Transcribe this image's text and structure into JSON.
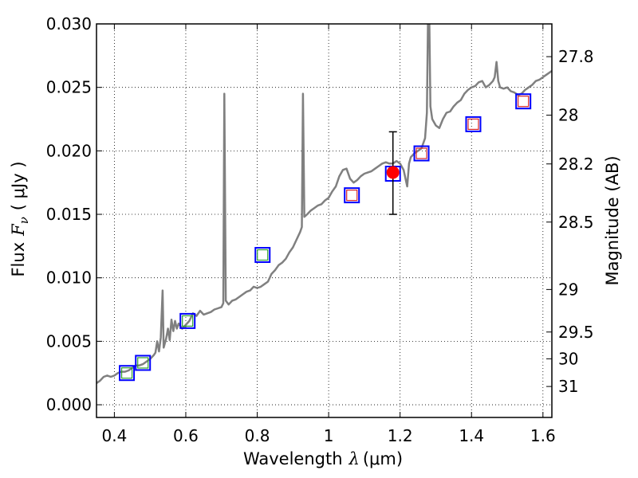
{
  "chart_data": {
    "type": "line",
    "title": "",
    "xlabel": {
      "prefix": "Wavelength",
      "symbol": "λ",
      "unit": "(μm)"
    },
    "ylabel": {
      "prefix": "Flux",
      "symbol": "F",
      "subscript": "ν",
      "unit": "( μJy )"
    },
    "y2label": "Magnitude (AB)",
    "xlim": [
      0.35,
      1.625
    ],
    "ylim": [
      -0.001,
      0.03
    ],
    "grid": true,
    "x_ticks": [
      0.4,
      0.6,
      0.8,
      1.0,
      1.2,
      1.4,
      1.6
    ],
    "x_tick_labels": [
      "0.4",
      "0.6",
      "0.8",
      "1",
      "1.2",
      "1.4",
      "1.6"
    ],
    "y_ticks": [
      0.0,
      0.005,
      0.01,
      0.015,
      0.02,
      0.025,
      0.03
    ],
    "y_tick_labels": [
      "0.000",
      "0.005",
      "0.010",
      "0.015",
      "0.020",
      "0.025",
      "0.030"
    ],
    "mag_ticks": [
      {
        "label": "27.8",
        "flux": 0.02742
      },
      {
        "label": "28",
        "flux": 0.02281
      },
      {
        "label": "28.2",
        "flux": 0.01897
      },
      {
        "label": "28.5",
        "flux": 0.01439
      },
      {
        "label": "29",
        "flux": 0.00908
      },
      {
        "label": "29.5",
        "flux": 0.00573
      },
      {
        "label": "30",
        "flux": 0.00362
      },
      {
        "label": "31",
        "flux": 0.00144
      }
    ],
    "series": [
      {
        "name": "template SED",
        "type": "line",
        "color": "#808080",
        "points": [
          [
            0.35,
            0.0017
          ],
          [
            0.36,
            0.0019
          ],
          [
            0.37,
            0.0022
          ],
          [
            0.38,
            0.0023
          ],
          [
            0.39,
            0.0022
          ],
          [
            0.4,
            0.0023
          ],
          [
            0.41,
            0.0025
          ],
          [
            0.42,
            0.0026
          ],
          [
            0.43,
            0.0026
          ],
          [
            0.44,
            0.0027
          ],
          [
            0.45,
            0.0029
          ],
          [
            0.46,
            0.0031
          ],
          [
            0.47,
            0.0031
          ],
          [
            0.48,
            0.0032
          ],
          [
            0.49,
            0.0034
          ],
          [
            0.5,
            0.0036
          ],
          [
            0.51,
            0.0039
          ],
          [
            0.515,
            0.0041
          ],
          [
            0.52,
            0.005
          ],
          [
            0.525,
            0.0042
          ],
          [
            0.53,
            0.0053
          ],
          [
            0.535,
            0.009
          ],
          [
            0.538,
            0.0045
          ],
          [
            0.545,
            0.0052
          ],
          [
            0.55,
            0.006
          ],
          [
            0.555,
            0.0051
          ],
          [
            0.56,
            0.0067
          ],
          [
            0.565,
            0.0058
          ],
          [
            0.57,
            0.0066
          ],
          [
            0.575,
            0.006
          ],
          [
            0.58,
            0.0064
          ],
          [
            0.585,
            0.0062
          ],
          [
            0.59,
            0.006
          ],
          [
            0.6,
            0.0063
          ],
          [
            0.61,
            0.0066
          ],
          [
            0.62,
            0.0072
          ],
          [
            0.63,
            0.007
          ],
          [
            0.64,
            0.0074
          ],
          [
            0.65,
            0.0071
          ],
          [
            0.66,
            0.0072
          ],
          [
            0.67,
            0.0073
          ],
          [
            0.68,
            0.0075
          ],
          [
            0.69,
            0.0076
          ],
          [
            0.7,
            0.0077
          ],
          [
            0.705,
            0.008
          ],
          [
            0.708,
            0.0245
          ],
          [
            0.712,
            0.0082
          ],
          [
            0.72,
            0.0079
          ],
          [
            0.73,
            0.0082
          ],
          [
            0.74,
            0.0083
          ],
          [
            0.75,
            0.0085
          ],
          [
            0.76,
            0.0087
          ],
          [
            0.77,
            0.0089
          ],
          [
            0.78,
            0.009
          ],
          [
            0.79,
            0.0093
          ],
          [
            0.8,
            0.0092
          ],
          [
            0.81,
            0.0093
          ],
          [
            0.82,
            0.0095
          ],
          [
            0.83,
            0.0097
          ],
          [
            0.84,
            0.0103
          ],
          [
            0.85,
            0.0106
          ],
          [
            0.86,
            0.011
          ],
          [
            0.87,
            0.0112
          ],
          [
            0.88,
            0.0115
          ],
          [
            0.89,
            0.012
          ],
          [
            0.9,
            0.0124
          ],
          [
            0.91,
            0.013
          ],
          [
            0.92,
            0.0136
          ],
          [
            0.925,
            0.014
          ],
          [
            0.928,
            0.0245
          ],
          [
            0.932,
            0.0148
          ],
          [
            0.94,
            0.015
          ],
          [
            0.95,
            0.0153
          ],
          [
            0.96,
            0.0155
          ],
          [
            0.97,
            0.0157
          ],
          [
            0.98,
            0.0158
          ],
          [
            0.99,
            0.0161
          ],
          [
            1.0,
            0.0163
          ],
          [
            1.01,
            0.0168
          ],
          [
            1.02,
            0.0172
          ],
          [
            1.03,
            0.018
          ],
          [
            1.04,
            0.0185
          ],
          [
            1.05,
            0.0186
          ],
          [
            1.06,
            0.0178
          ],
          [
            1.07,
            0.0175
          ],
          [
            1.08,
            0.0177
          ],
          [
            1.09,
            0.018
          ],
          [
            1.1,
            0.0182
          ],
          [
            1.11,
            0.0183
          ],
          [
            1.12,
            0.0184
          ],
          [
            1.13,
            0.0186
          ],
          [
            1.14,
            0.0188
          ],
          [
            1.15,
            0.019
          ],
          [
            1.16,
            0.0191
          ],
          [
            1.17,
            0.019
          ],
          [
            1.18,
            0.019
          ],
          [
            1.19,
            0.0192
          ],
          [
            1.2,
            0.019
          ],
          [
            1.21,
            0.0185
          ],
          [
            1.22,
            0.0172
          ],
          [
            1.225,
            0.019
          ],
          [
            1.23,
            0.0195
          ],
          [
            1.24,
            0.0198
          ],
          [
            1.25,
            0.02
          ],
          [
            1.26,
            0.0202
          ],
          [
            1.27,
            0.021
          ],
          [
            1.275,
            0.023
          ],
          [
            1.278,
            0.03
          ],
          [
            1.282,
            0.03
          ],
          [
            1.285,
            0.0235
          ],
          [
            1.29,
            0.0225
          ],
          [
            1.3,
            0.022
          ],
          [
            1.31,
            0.0218
          ],
          [
            1.32,
            0.0225
          ],
          [
            1.33,
            0.023
          ],
          [
            1.34,
            0.0231
          ],
          [
            1.35,
            0.0235
          ],
          [
            1.36,
            0.0238
          ],
          [
            1.37,
            0.024
          ],
          [
            1.38,
            0.0245
          ],
          [
            1.39,
            0.0248
          ],
          [
            1.4,
            0.025
          ],
          [
            1.41,
            0.0251
          ],
          [
            1.42,
            0.0254
          ],
          [
            1.43,
            0.0255
          ],
          [
            1.44,
            0.025
          ],
          [
            1.45,
            0.0252
          ],
          [
            1.46,
            0.0255
          ],
          [
            1.465,
            0.0258
          ],
          [
            1.47,
            0.027
          ],
          [
            1.475,
            0.0255
          ],
          [
            1.48,
            0.025
          ],
          [
            1.49,
            0.0249
          ],
          [
            1.5,
            0.025
          ],
          [
            1.51,
            0.0247
          ],
          [
            1.52,
            0.0246
          ],
          [
            1.53,
            0.0244
          ],
          [
            1.54,
            0.0245
          ],
          [
            1.55,
            0.0248
          ],
          [
            1.56,
            0.025
          ],
          [
            1.57,
            0.0252
          ],
          [
            1.58,
            0.0255
          ],
          [
            1.59,
            0.0256
          ],
          [
            1.6,
            0.0258
          ],
          [
            1.61,
            0.026
          ],
          [
            1.625,
            0.0263
          ]
        ]
      },
      {
        "name": "photometry (blue squares)",
        "type": "scatter",
        "marker": "square",
        "color": "#0000ff",
        "points": [
          [
            0.435,
            0.0025
          ],
          [
            0.48,
            0.0033
          ],
          [
            0.605,
            0.0066
          ],
          [
            0.815,
            0.0118
          ],
          [
            1.065,
            0.0165
          ],
          [
            1.18,
            0.0182
          ],
          [
            1.26,
            0.0198
          ],
          [
            1.405,
            0.0221
          ],
          [
            1.545,
            0.0239
          ]
        ]
      },
      {
        "name": "model optical (green squares)",
        "type": "scatter",
        "marker": "square",
        "color": "#2ca02c",
        "points": [
          [
            0.435,
            0.0025
          ],
          [
            0.48,
            0.0033
          ],
          [
            0.605,
            0.0066
          ],
          [
            0.815,
            0.0118
          ]
        ]
      },
      {
        "name": "model NIR (red squares)",
        "type": "scatter",
        "marker": "square",
        "color": "#d62728",
        "points": [
          [
            1.065,
            0.0165
          ],
          [
            1.26,
            0.0198
          ],
          [
            1.405,
            0.0221
          ],
          [
            1.545,
            0.0239
          ]
        ]
      },
      {
        "name": "measured point",
        "type": "errorbar",
        "color": "#ff0000",
        "x": 1.18,
        "y": 0.0183,
        "yerr_low": 0.015,
        "yerr_high": 0.0215
      }
    ]
  }
}
